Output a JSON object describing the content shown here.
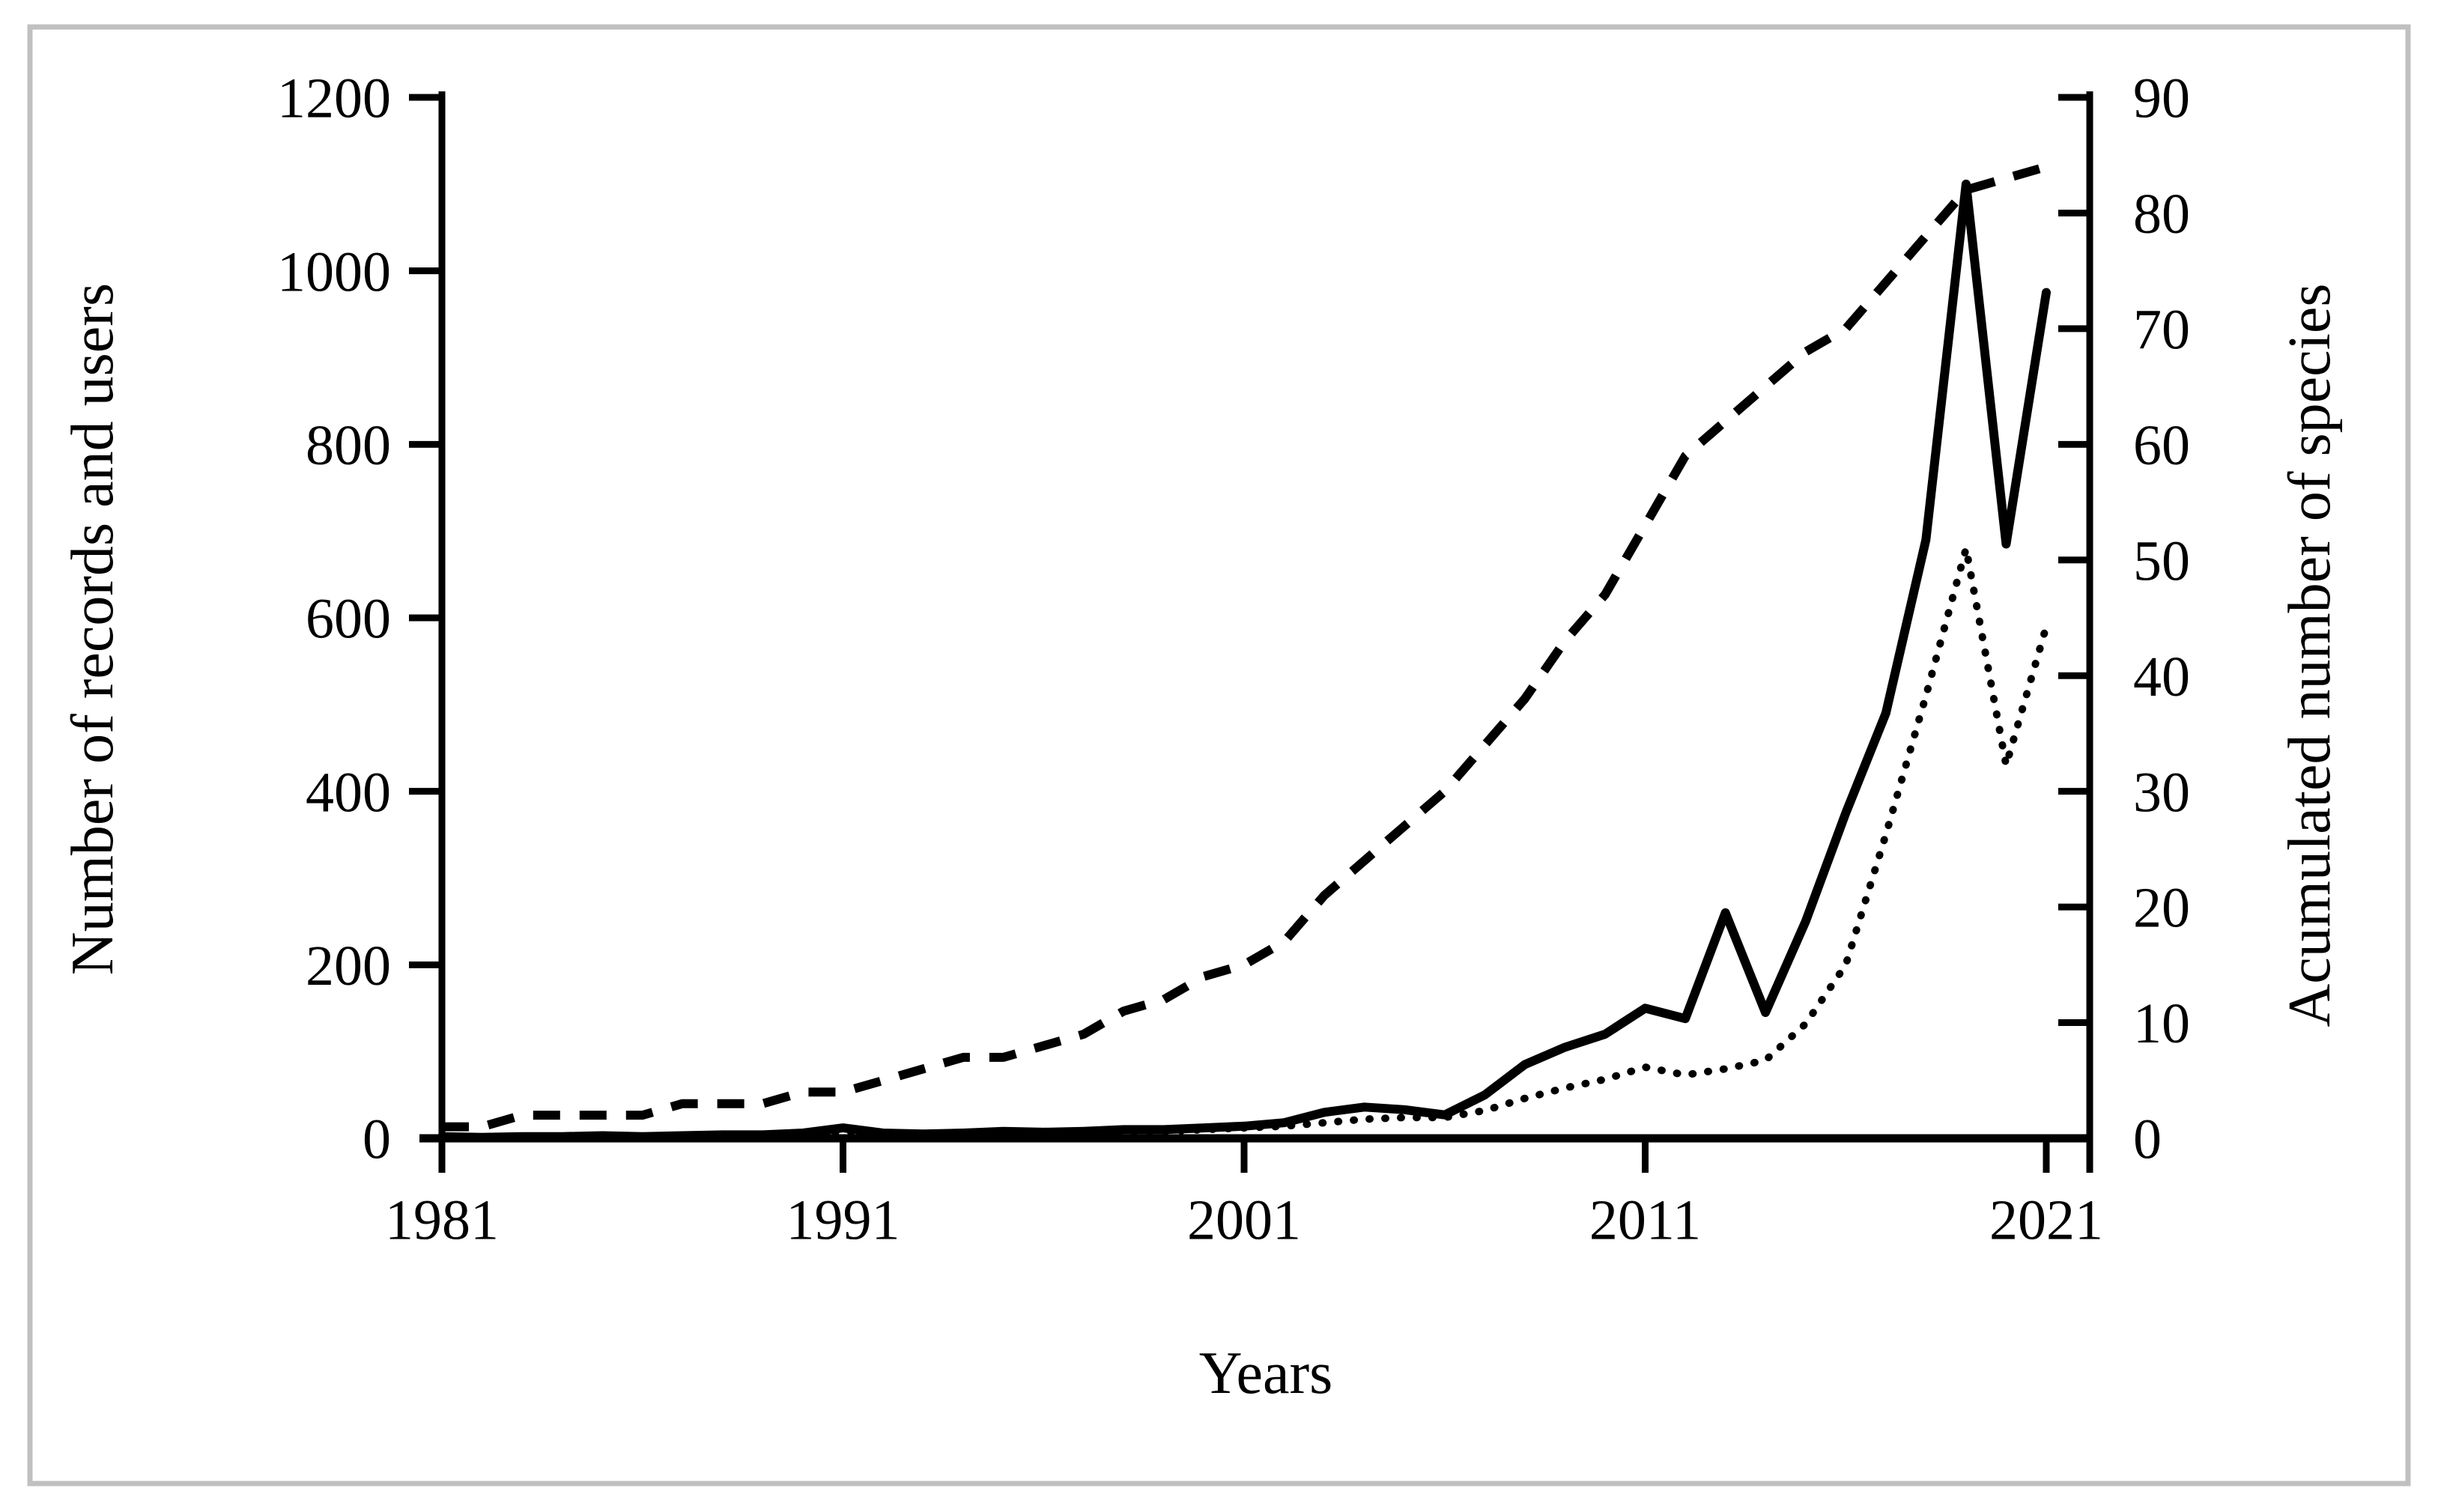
{
  "figure": {
    "background": "#ffffff",
    "border_color": "#c0c0c0",
    "line_color": "#000000"
  },
  "chart_data": {
    "type": "line",
    "title": "",
    "xlabel": "Years",
    "ylabel_left": "Number of records and users",
    "ylabel_right": "Acumulated number of species",
    "xlim": [
      1981,
      2022
    ],
    "ylim_left": [
      0,
      1200
    ],
    "ylim_right": [
      0,
      90
    ],
    "xticks": [
      1981,
      1991,
      2001,
      2011,
      2021
    ],
    "yticks_left": [
      0,
      200,
      400,
      600,
      800,
      1000,
      1200
    ],
    "yticks_right": [
      0,
      10,
      20,
      30,
      40,
      50,
      60,
      70,
      80,
      90
    ],
    "grid": "off",
    "legend": "none",
    "x": [
      1981,
      1982,
      1983,
      1984,
      1985,
      1986,
      1987,
      1988,
      1989,
      1990,
      1991,
      1992,
      1993,
      1994,
      1995,
      1996,
      1997,
      1998,
      1999,
      2000,
      2001,
      2002,
      2003,
      2004,
      2005,
      2006,
      2007,
      2008,
      2009,
      2010,
      2011,
      2012,
      2013,
      2014,
      2015,
      2016,
      2017,
      2018,
      2019,
      2020,
      2021
    ],
    "series": [
      {
        "name": "records",
        "style": "solid",
        "axis": "left",
        "values": [
          2,
          1,
          2,
          2,
          3,
          2,
          3,
          4,
          4,
          6,
          12,
          6,
          5,
          6,
          8,
          7,
          8,
          10,
          10,
          12,
          14,
          18,
          30,
          36,
          33,
          27,
          50,
          85,
          105,
          120,
          150,
          138,
          260,
          145,
          250,
          375,
          490,
          690,
          1100,
          685,
          975
        ]
      },
      {
        "name": "users",
        "style": "dotted",
        "axis": "left",
        "values": [
          1,
          1,
          1,
          2,
          2,
          2,
          2,
          3,
          3,
          4,
          8,
          5,
          4,
          5,
          6,
          6,
          7,
          8,
          8,
          10,
          12,
          14,
          18,
          22,
          24,
          24,
          32,
          46,
          58,
          68,
          82,
          73,
          80,
          90,
          132,
          200,
          350,
          510,
          680,
          430,
          590
        ]
      },
      {
        "name": "accumulated-species",
        "style": "dashed",
        "axis": "right",
        "values": [
          1,
          1,
          2,
          2,
          2,
          2,
          3,
          3,
          3,
          4,
          4,
          5,
          6,
          7,
          7,
          8,
          9,
          11,
          12,
          14,
          15,
          17,
          21,
          24,
          27,
          30,
          34,
          38,
          43,
          47,
          53,
          59,
          62,
          65,
          68,
          70,
          74,
          78,
          82,
          83,
          84
        ]
      }
    ]
  }
}
